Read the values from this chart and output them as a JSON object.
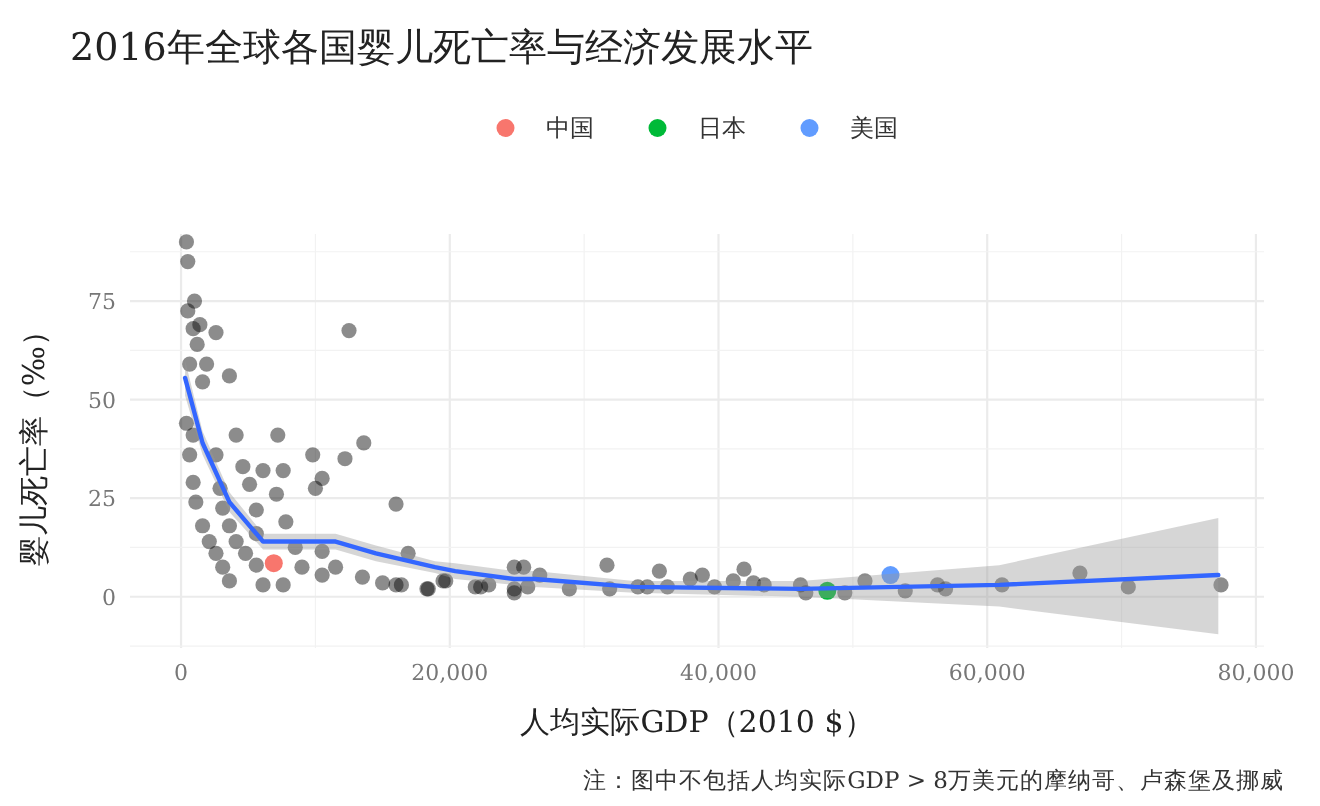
{
  "chart_data": {
    "type": "scatter",
    "title": "2016年全球各国婴儿死亡率与经济发展水平",
    "xlabel": "人均实际GDP（2010 $）",
    "ylabel": "婴儿死亡率（‰）",
    "legend": "top",
    "grid": true,
    "marker": "circle",
    "xlim": [
      -3800,
      80600
    ],
    "ylim": [
      -13,
      92
    ],
    "xticks": [
      {
        "value": 0,
        "label": "0"
      },
      {
        "value": 20000,
        "label": "20,000"
      },
      {
        "value": 40000,
        "label": "40,000"
      },
      {
        "value": 60000,
        "label": "60,000"
      },
      {
        "value": 80000,
        "label": "80,000"
      }
    ],
    "yticks": [
      0,
      25,
      50,
      75
    ],
    "annotations": [
      "注：图中不包括人均实际GDP > 8万美元的摩纳哥、卢森堡及挪威"
    ],
    "series": [
      {
        "color": "#000000",
        "x": [
          400,
          500,
          1000,
          500,
          1400,
          900,
          2600,
          1200,
          12500,
          640,
          1600,
          1900,
          3600,
          400,
          900,
          4100,
          7200,
          640,
          2600,
          13600,
          9800,
          12200,
          4600,
          6100,
          7600,
          900,
          2900,
          5100,
          7100,
          10500,
          10000,
          1100,
          3100,
          5600,
          16000,
          1600,
          3600,
          7800,
          2100,
          4100,
          5600,
          2600,
          4800,
          8500,
          10500,
          11500,
          3100,
          5600,
          9000,
          3600,
          6100,
          7600,
          10500,
          13500,
          15000,
          16000,
          16900,
          18400,
          19700,
          21900,
          24800,
          24800,
          16400,
          18300,
          19500,
          22300,
          22900,
          24800,
          25500,
          25800,
          26700,
          28900,
          31700,
          31900,
          34000,
          34700,
          35600,
          36200,
          37900,
          38800,
          39700,
          41100,
          41900,
          42600,
          43400,
          46100,
          46500,
          49400,
          50900,
          53900,
          56300,
          56900,
          61100,
          66900,
          70500,
          77400
        ],
        "values": [
          90,
          85,
          75,
          72.5,
          69,
          68,
          67,
          64,
          67.5,
          59,
          54.5,
          59,
          56,
          44,
          41,
          41,
          41,
          36,
          36,
          39,
          36,
          35,
          33,
          32,
          32,
          29,
          27.5,
          28.5,
          26,
          30,
          27.5,
          24,
          22.5,
          22,
          23.5,
          18,
          18,
          19,
          14,
          14,
          16,
          11,
          11,
          12.5,
          11.5,
          7.5,
          7.5,
          8,
          7.5,
          4,
          3,
          3,
          5.5,
          5,
          3.5,
          3,
          11,
          2,
          4,
          2.5,
          7.5,
          2,
          3,
          2,
          4,
          2.5,
          3,
          1,
          7.5,
          2.5,
          5.5,
          2,
          8,
          2,
          2.5,
          2.5,
          6.5,
          2.5,
          4.5,
          5.5,
          2.5,
          4,
          7,
          3.5,
          3,
          3,
          1,
          1,
          4,
          1.5,
          3,
          2,
          3,
          6,
          2.5,
          3
        ]
      },
      {
        "type": "line",
        "marker": "none",
        "color": "#3366ff",
        "x": [
          300,
          1600,
          3600,
          6100,
          7800,
          11500,
          14500,
          18900,
          20400,
          24800,
          26300,
          33700,
          46100,
          60900,
          77200
        ],
        "values": [
          55.5,
          39,
          24,
          14,
          14,
          14,
          11,
          7.5,
          6.5,
          4.5,
          4.5,
          2.5,
          2,
          3,
          5.5
        ],
        "lower": [
          51,
          36,
          21.5,
          12,
          12,
          12,
          9,
          6,
          4.5,
          3,
          2.5,
          1,
          0,
          -2.5,
          -9.5
        ],
        "upper": [
          60,
          42,
          26.5,
          16,
          16,
          16,
          13,
          9,
          8.5,
          6.5,
          6.5,
          4,
          4,
          8,
          20
        ]
      },
      {
        "name": "中国",
        "color": "#f8766d",
        "x": [
          6900
        ],
        "values": [
          8.5
        ]
      },
      {
        "name": "日本",
        "color": "#00ba38",
        "x": [
          48100
        ],
        "values": [
          1.5
        ]
      },
      {
        "name": "美国",
        "color": "#619cff",
        "x": [
          52800
        ],
        "values": [
          5.5
        ]
      }
    ]
  }
}
